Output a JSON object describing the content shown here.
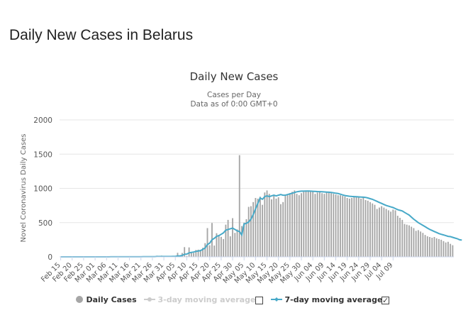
{
  "page": {
    "title": "Daily New Cases in Belarus"
  },
  "chart_data": {
    "type": "bar",
    "title": "Daily New Cases",
    "subtitle_line1": "Cases per Day",
    "subtitle_line2": "Data as of 0:00 GMT+0",
    "ylabel": "Novel Coronavirus Daily Cases",
    "xlabel": "",
    "ylim": [
      0,
      2000
    ],
    "yticks": [
      0,
      500,
      1000,
      1500,
      2000
    ],
    "grid": true,
    "legend_position": "bottom-center",
    "start_date": "Feb 15",
    "xtick_labels": [
      "Feb 15",
      "Feb 20",
      "Feb 25",
      "Mar 01",
      "Mar 06",
      "Mar 11",
      "Mar 16",
      "Mar 21",
      "Mar 26",
      "Mar 31",
      "Apr 05",
      "Apr 10",
      "Apr 15",
      "Apr 20",
      "Apr 25",
      "Apr 30",
      "May 05",
      "May 10",
      "May 15",
      "May 20",
      "May 25",
      "May 30",
      "Jun 04",
      "Jun 09",
      "Jun 14",
      "Jun 19",
      "Jun 24",
      "Jun 29",
      "Jul 04",
      "Jul 09"
    ],
    "colors": {
      "bars": "#a6a6a6",
      "ma7": "#47a9c8",
      "ma3": "#cccccc",
      "grid": "#e6e6e6"
    },
    "series": [
      {
        "name": "Daily Cases",
        "kind": "bar",
        "values": [
          0,
          0,
          0,
          0,
          0,
          0,
          0,
          0,
          0,
          0,
          0,
          0,
          0,
          0,
          1,
          0,
          0,
          0,
          1,
          0,
          0,
          0,
          1,
          1,
          0,
          0,
          3,
          0,
          0,
          0,
          1,
          1,
          1,
          0,
          3,
          0,
          9,
          0,
          0,
          3,
          0,
          3,
          17,
          0,
          18,
          0,
          0,
          0,
          1,
          5,
          15,
          59,
          13,
          57,
          142,
          14,
          138,
          59,
          58,
          100,
          105,
          104,
          132,
          200,
          420,
          170,
          495,
          165,
          345,
          321,
          292,
          260,
          470,
          540,
          300,
          565,
          350,
          400,
          1485,
          450,
          500,
          550,
          730,
          740,
          800,
          860,
          850,
          880,
          760,
          940,
          970,
          920,
          840,
          890,
          850,
          870,
          770,
          800,
          890,
          900,
          930,
          950,
          970,
          920,
          900,
          930,
          950,
          960,
          970,
          960,
          950,
          920,
          940,
          950,
          930,
          920,
          940,
          950,
          930,
          920,
          910,
          900,
          900,
          890,
          880,
          860,
          850,
          860,
          870,
          880,
          870,
          850,
          880,
          830,
          820,
          800,
          780,
          760,
          700,
          720,
          740,
          720,
          700,
          680,
          660,
          690,
          680,
          600,
          570,
          540,
          480,
          470,
          460,
          440,
          420,
          380,
          390,
          370,
          350,
          320,
          300,
          290,
          280,
          290,
          270,
          260,
          250,
          230,
          210,
          220,
          190,
          170
        ]
      },
      {
        "name": "3-day moving average",
        "kind": "line",
        "visible": false
      },
      {
        "name": "7-day moving average",
        "kind": "line",
        "visible": true,
        "values": [
          0,
          0,
          0,
          0,
          0,
          0,
          0,
          0,
          0,
          0,
          0,
          0,
          0,
          0,
          0,
          0,
          0,
          0,
          0,
          0,
          0,
          0,
          1,
          1,
          1,
          1,
          1,
          1,
          1,
          1,
          1,
          1,
          1,
          1,
          1,
          1,
          2,
          2,
          2,
          2,
          2,
          2,
          5,
          5,
          5,
          5,
          5,
          5,
          5,
          6,
          6,
          13,
          14,
          20,
          38,
          40,
          58,
          65,
          70,
          80,
          85,
          90,
          110,
          130,
          180,
          200,
          250,
          270,
          300,
          310,
          330,
          350,
          390,
          400,
          410,
          420,
          400,
          380,
          370,
          320,
          480,
          490,
          510,
          550,
          620,
          700,
          780,
          860,
          840,
          880,
          890,
          880,
          890,
          900,
          890,
          900,
          910,
          900,
          900,
          910,
          920,
          930,
          940,
          950,
          955,
          960,
          960,
          962,
          962,
          960,
          958,
          955,
          953,
          952,
          950,
          948,
          946,
          944,
          940,
          936,
          930,
          925,
          915,
          905,
          895,
          890,
          885,
          882,
          880,
          878,
          876,
          874,
          872,
          868,
          860,
          850,
          840,
          825,
          810,
          795,
          780,
          765,
          750,
          740,
          730,
          720,
          705,
          690,
          680,
          670,
          650,
          630,
          610,
          580,
          550,
          525,
          500,
          480,
          460,
          440,
          420,
          400,
          385,
          370,
          355,
          340,
          330,
          320,
          310,
          300,
          295,
          285,
          275,
          265,
          250,
          245
        ]
      }
    ]
  },
  "legend": {
    "daily": "Daily Cases",
    "ma3": "3-day moving average",
    "ma7": "7-day moving average",
    "ma3_checked": false,
    "ma7_checked": true
  }
}
